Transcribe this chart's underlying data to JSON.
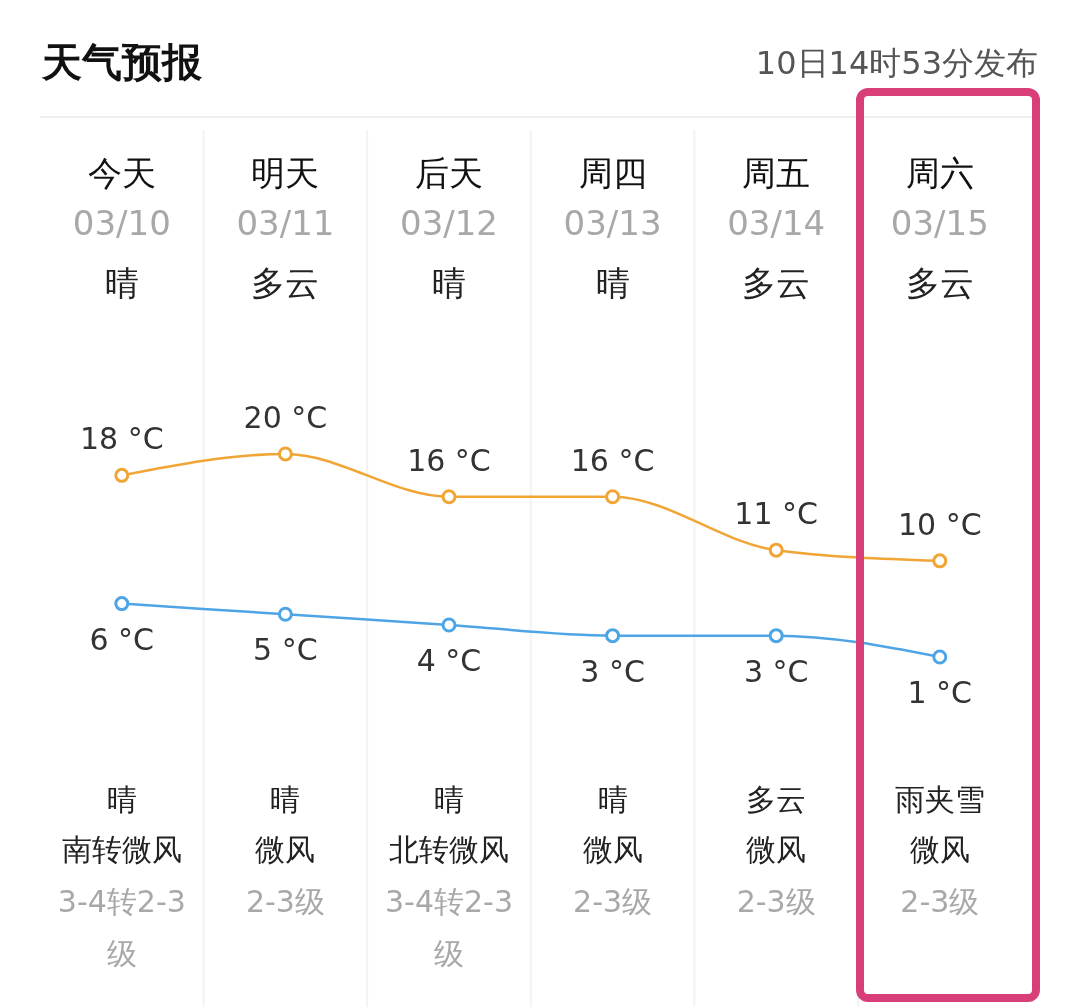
{
  "chart_data": {
    "type": "line",
    "title": "天气预报",
    "subtitle": "10日14时53分发布",
    "categories": [
      "今天",
      "明天",
      "后天",
      "周四",
      "周五",
      "周六"
    ],
    "series": [
      {
        "color": "#f0a534",
        "values": [
          18,
          20,
          16,
          16,
          11,
          10
        ],
        "value_labels": [
          "18 °C",
          "20 °C",
          "16 °C",
          "16 °C",
          "11 °C",
          "10 °C"
        ]
      },
      {
        "color": "#4ea5e6",
        "values": [
          6,
          5,
          4,
          3,
          3,
          1
        ],
        "value_labels": [
          "6 °C",
          "5 °C",
          "4 °C",
          "3 °C",
          "3 °C",
          "1 °C"
        ]
      }
    ],
    "marker": "circle",
    "line_style": "solid",
    "annotations": [
      "03/10",
      "晴",
      "晴",
      "南转微风",
      "3-4转2-3级",
      "03/11",
      "多云",
      "晴",
      "微风",
      "2-3级",
      "03/12",
      "晴",
      "晴",
      "北转微风",
      "3-4转2-3级",
      "03/13",
      "晴",
      "晴",
      "微风",
      "2-3级",
      "03/14",
      "多云",
      "多云",
      "微风",
      "2-3级",
      "03/15",
      "多云",
      "雨夹雪",
      "微风",
      "2-3级"
    ]
  }
}
